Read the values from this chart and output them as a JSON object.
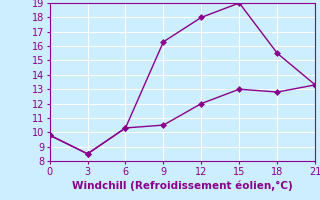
{
  "line1_x": [
    0,
    3,
    6,
    9,
    12,
    15,
    18,
    21
  ],
  "line1_y": [
    9.8,
    8.5,
    10.3,
    16.3,
    18.0,
    19.0,
    15.5,
    13.3
  ],
  "line2_x": [
    0,
    3,
    6,
    9,
    12,
    15,
    18,
    21
  ],
  "line2_y": [
    9.8,
    8.5,
    10.3,
    10.5,
    12.0,
    13.0,
    12.8,
    13.3
  ],
  "line_color": "#8B008B",
  "marker": "D",
  "markersize": 3,
  "xlabel": "Windchill (Refroidissement éolien,°C)",
  "xlabel_color": "#8B008B",
  "xlim": [
    0,
    21
  ],
  "ylim": [
    8,
    19
  ],
  "xticks": [
    0,
    3,
    6,
    9,
    12,
    15,
    18,
    21
  ],
  "yticks": [
    8,
    9,
    10,
    11,
    12,
    13,
    14,
    15,
    16,
    17,
    18,
    19
  ],
  "bg_color": "#cceeff",
  "grid_color": "#ffffff",
  "tick_color": "#8B008B",
  "linewidth": 1.0,
  "tick_labelsize": 7,
  "xlabel_fontsize": 7.5
}
